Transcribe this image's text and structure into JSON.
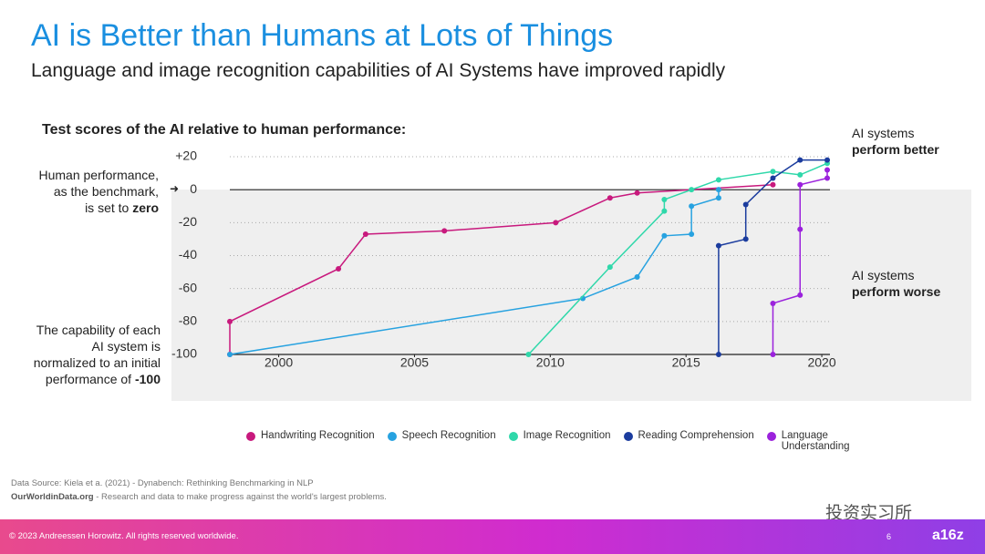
{
  "header": {
    "title": "AI is Better than Humans at Lots of Things",
    "subtitle": "Language and image recognition capabilities of AI Systems have improved rapidly"
  },
  "chart_data": {
    "type": "line",
    "title": "Test scores of the AI relative to human performance:",
    "xlim": [
      1998.2,
      2020.3
    ],
    "xticks": [
      2000,
      2005,
      2010,
      2015,
      2020
    ],
    "ylim": [
      -100,
      20
    ],
    "yticks": [
      {
        "value": 20,
        "label": "+20"
      },
      0,
      -20,
      -40,
      -60,
      -80,
      -100
    ],
    "grid": true,
    "series": [
      {
        "name": "Handwriting Recognition",
        "color": "#c8197d",
        "x": [
          1998.2,
          1998.2,
          2002.2,
          2003.2,
          2006.1,
          2010.2,
          2012.2,
          2013.2,
          2018.2
        ],
        "values": [
          -100,
          -80,
          -48,
          -27,
          -25,
          -20,
          -5,
          -2,
          3
        ]
      },
      {
        "name": "Speech Recognition",
        "color": "#27a2e0",
        "x": [
          1998.2,
          2011.2,
          2013.2,
          2014.2,
          2015.2,
          2015.2,
          2016.2,
          2016.2
        ],
        "values": [
          -100,
          -66,
          -53,
          -28,
          -27,
          -10,
          -5,
          0
        ]
      },
      {
        "name": "Image Recognition",
        "color": "#2fd8aa",
        "x": [
          2009.2,
          2012.2,
          2014.2,
          2014.2,
          2015.2,
          2016.2,
          2018.2,
          2019.2,
          2020.2
        ],
        "values": [
          -100,
          -47,
          -13,
          -6,
          0,
          6,
          11,
          9,
          16
        ]
      },
      {
        "name": "Reading Comprehension",
        "color": "#1b3c9e",
        "x": [
          2016.2,
          2016.2,
          2017.2,
          2017.2,
          2018.2,
          2019.2,
          2020.2
        ],
        "values": [
          -100,
          -34,
          -30,
          -9,
          7,
          18,
          18
        ]
      },
      {
        "name": "Language Understanding",
        "color": "#9b22dc",
        "x": [
          2018.2,
          2018.2,
          2019.2,
          2019.2,
          2019.2,
          2020.2,
          2020.2
        ],
        "values": [
          -100,
          -69,
          -64,
          -24,
          3,
          7,
          12
        ]
      }
    ],
    "annotations": {
      "benchmark": [
        "Human performance,",
        "as the benchmark,",
        "is set to",
        "zero"
      ],
      "normalized": [
        "The capability of each",
        "AI system is",
        "normalized to an initial",
        "performance of",
        "-100"
      ],
      "better": [
        "AI systems",
        "perform better"
      ],
      "worse": [
        "AI systems",
        "perform worse"
      ]
    }
  },
  "source": {
    "line1": "Data Source: Kiela et a. (2021) - Dynabench: Rethinking Benchmarking in NLP",
    "site": "OurWorldinData.org",
    "line2": " - Research and data to make progress against the world's largest problems."
  },
  "watermark": "投资实习所",
  "footer": {
    "copyright": "© 2023 Andreessen Horowitz. All rights reserved worldwide.",
    "page": "6",
    "logo": "a16z"
  }
}
